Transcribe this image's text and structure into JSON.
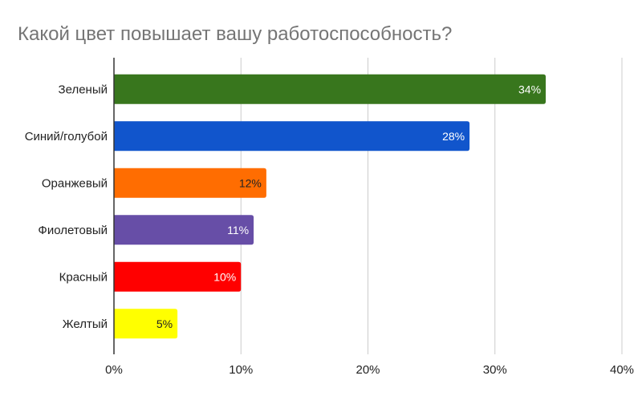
{
  "chart_data": {
    "type": "bar",
    "orientation": "horizontal",
    "title": "Какой цвет повышает вашу работоспособность?",
    "xlabel": "",
    "ylabel": "",
    "xlim": [
      0,
      40
    ],
    "x_ticks": [
      0,
      10,
      20,
      30,
      40
    ],
    "x_tick_labels": [
      "0%",
      "10%",
      "20%",
      "30%",
      "40%"
    ],
    "grid": true,
    "legend": "none",
    "categories": [
      "Зеленый",
      "Синий/голубой",
      "Оранжевый",
      "Фиолетовый",
      "Красный",
      "Желтый"
    ],
    "values": [
      34,
      28,
      12,
      11,
      10,
      5
    ],
    "value_labels": [
      "34%",
      "28%",
      "12%",
      "11%",
      "10%",
      "5%"
    ],
    "bar_colors": [
      "#38761d",
      "#1155cc",
      "#ff6d01",
      "#674ea7",
      "#ff0000",
      "#ffff00"
    ],
    "value_label_colors": [
      "#ffffff",
      "#ffffff",
      "#222222",
      "#ffffff",
      "#ffffff",
      "#222222"
    ]
  }
}
